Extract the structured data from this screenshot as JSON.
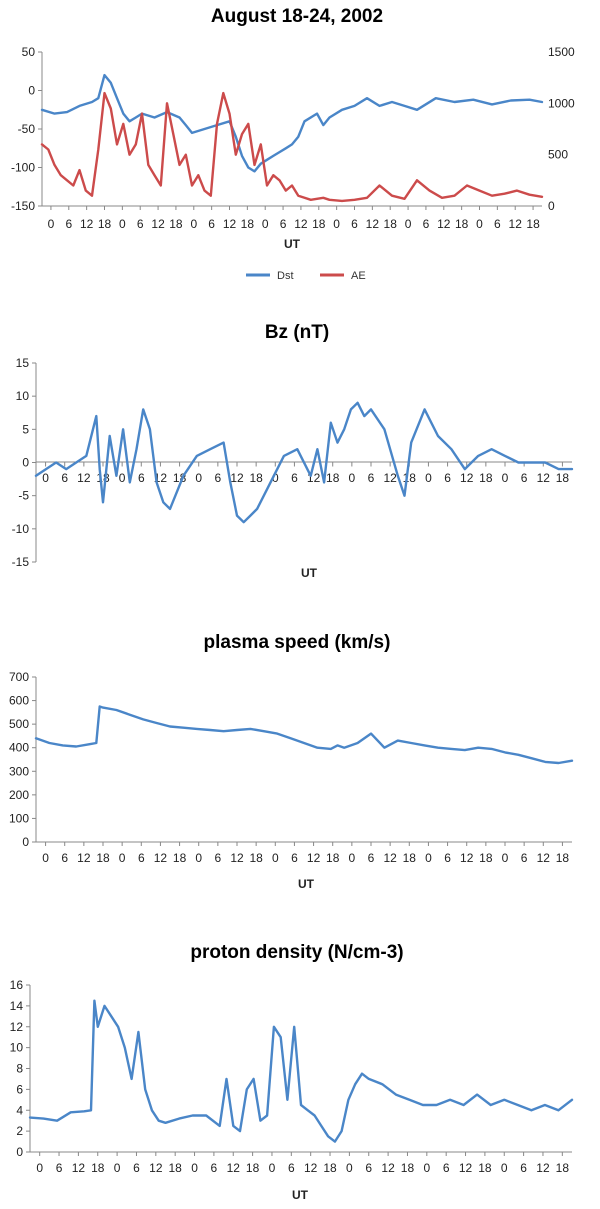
{
  "page": {
    "colors": {
      "dst": "#4a86c8",
      "ae": "#cc4b4b",
      "axis": "#888888"
    }
  },
  "chart_data": [
    {
      "id": "dst-ae",
      "type": "line",
      "title": "August 18-24, 2002",
      "xlabel": "UT",
      "ylabel": "",
      "xlim": [
        0,
        160
      ],
      "ylim": [
        -150,
        50
      ],
      "y2lim": [
        0,
        1500
      ],
      "yticks": [
        50,
        0,
        -50,
        -100,
        -150
      ],
      "y2ticks": [
        1500,
        1000,
        500,
        0
      ],
      "xtick_labels": [
        "0",
        "6",
        "12",
        "18",
        "0",
        "6",
        "12",
        "18",
        "0",
        "6",
        "12",
        "18",
        "0",
        "6",
        "12",
        "18",
        "0",
        "6",
        "12",
        "18",
        "0",
        "6",
        "12",
        "18",
        "0",
        "6",
        "12",
        "18"
      ],
      "legend": {
        "position": "bottom",
        "entries": [
          "Dst",
          "AE"
        ]
      },
      "series": [
        {
          "name": "Dst",
          "axis": "left",
          "color": "#4a86c8",
          "x": [
            0,
            4,
            8,
            12,
            16,
            18,
            20,
            22,
            24,
            26,
            28,
            30,
            32,
            36,
            40,
            44,
            46,
            48,
            52,
            56,
            60,
            62,
            64,
            66,
            68,
            70,
            72,
            74,
            76,
            78,
            80,
            82,
            84,
            88,
            90,
            92,
            96,
            100,
            104,
            108,
            112,
            116,
            120,
            126,
            132,
            138,
            144,
            150,
            156,
            160
          ],
          "values": [
            -25,
            -30,
            -28,
            -20,
            -15,
            -10,
            20,
            10,
            -10,
            -30,
            -40,
            -35,
            -30,
            -35,
            -28,
            -35,
            -45,
            -55,
            -50,
            -45,
            -40,
            -60,
            -85,
            -100,
            -105,
            -95,
            -90,
            -85,
            -80,
            -75,
            -70,
            -60,
            -40,
            -30,
            -45,
            -35,
            -25,
            -20,
            -10,
            -20,
            -15,
            -20,
            -25,
            -10,
            -15,
            -12,
            -18,
            -13,
            -12,
            -15
          ]
        },
        {
          "name": "AE",
          "axis": "right",
          "color": "#cc4b4b",
          "x": [
            0,
            2,
            4,
            6,
            8,
            10,
            12,
            14,
            16,
            18,
            20,
            22,
            24,
            26,
            28,
            30,
            32,
            34,
            36,
            38,
            40,
            42,
            44,
            46,
            48,
            50,
            52,
            54,
            56,
            58,
            60,
            62,
            64,
            66,
            68,
            70,
            72,
            74,
            76,
            78,
            80,
            82,
            84,
            86,
            88,
            90,
            92,
            96,
            100,
            104,
            108,
            112,
            116,
            120,
            124,
            128,
            132,
            136,
            140,
            144,
            148,
            152,
            156,
            160
          ],
          "values": [
            600,
            550,
            400,
            300,
            250,
            200,
            350,
            150,
            100,
            550,
            1100,
            950,
            600,
            800,
            500,
            600,
            900,
            400,
            300,
            200,
            1000,
            700,
            400,
            500,
            200,
            300,
            150,
            100,
            800,
            1100,
            900,
            500,
            700,
            800,
            400,
            600,
            200,
            300,
            250,
            150,
            200,
            100,
            80,
            60,
            70,
            80,
            60,
            50,
            60,
            80,
            200,
            100,
            70,
            250,
            150,
            80,
            100,
            200,
            150,
            100,
            120,
            150,
            110,
            90
          ]
        }
      ]
    },
    {
      "id": "bz",
      "type": "line",
      "title": "Bz (nT)",
      "xlabel": "UT",
      "ylabel": "",
      "xlim": [
        0,
        160
      ],
      "ylim": [
        -15,
        15
      ],
      "yticks": [
        15,
        10,
        5,
        0,
        -5,
        -10,
        -15
      ],
      "xtick_labels": [
        "0",
        "6",
        "12",
        "18",
        "0",
        "6",
        "12",
        "18",
        "0",
        "6",
        "12",
        "18",
        "0",
        "6",
        "12",
        "18",
        "0",
        "6",
        "12",
        "18",
        "0",
        "6",
        "12",
        "18",
        "0",
        "6",
        "12",
        "18"
      ],
      "series": [
        {
          "name": "",
          "color": "#4a86c8",
          "x": [
            0,
            3,
            6,
            9,
            12,
            15,
            18,
            19,
            20,
            22,
            24,
            26,
            28,
            30,
            32,
            34,
            36,
            38,
            40,
            44,
            48,
            52,
            56,
            58,
            60,
            62,
            64,
            66,
            70,
            74,
            78,
            82,
            84,
            86,
            88,
            90,
            92,
            94,
            96,
            98,
            100,
            104,
            108,
            110,
            112,
            116,
            120,
            124,
            128,
            132,
            136,
            140,
            144,
            148,
            152,
            156,
            160
          ],
          "values": [
            -2,
            -1,
            0,
            -1,
            0,
            1,
            7,
            -1,
            -6,
            4,
            -2,
            5,
            -3,
            2,
            8,
            5,
            -3,
            -6,
            -7,
            -2,
            1,
            2,
            3,
            -3,
            -8,
            -9,
            -8,
            -7,
            -3,
            1,
            2,
            -2,
            2,
            -3,
            6,
            3,
            5,
            8,
            9,
            7,
            8,
            5,
            -2,
            -5,
            3,
            8,
            4,
            2,
            -1,
            1,
            2,
            1,
            0,
            0,
            0,
            -1,
            -1
          ]
        }
      ]
    },
    {
      "id": "speed",
      "type": "line",
      "title": "plasma speed (km/s)",
      "xlabel": "UT",
      "ylabel": "",
      "xlim": [
        0,
        160
      ],
      "ylim": [
        0,
        700
      ],
      "yticks": [
        700,
        600,
        500,
        400,
        300,
        200,
        100,
        0
      ],
      "xtick_labels": [
        "0",
        "6",
        "12",
        "18",
        "0",
        "6",
        "12",
        "18",
        "0",
        "6",
        "12",
        "18",
        "0",
        "6",
        "12",
        "18",
        "0",
        "6",
        "12",
        "18",
        "0",
        "6",
        "12",
        "18",
        "0",
        "6",
        "12",
        "18"
      ],
      "series": [
        {
          "name": "",
          "color": "#4a86c8",
          "x": [
            0,
            4,
            8,
            12,
            16,
            18,
            19,
            20,
            24,
            28,
            32,
            36,
            40,
            44,
            48,
            52,
            56,
            60,
            64,
            68,
            72,
            76,
            80,
            84,
            88,
            90,
            92,
            96,
            100,
            104,
            108,
            112,
            116,
            120,
            124,
            128,
            132,
            136,
            140,
            144,
            148,
            152,
            156,
            160
          ],
          "values": [
            440,
            420,
            410,
            405,
            415,
            420,
            575,
            570,
            560,
            540,
            520,
            505,
            490,
            485,
            480,
            475,
            470,
            475,
            480,
            470,
            460,
            440,
            420,
            400,
            395,
            410,
            400,
            420,
            460,
            400,
            430,
            420,
            410,
            400,
            395,
            390,
            400,
            395,
            380,
            370,
            355,
            340,
            335,
            345
          ]
        }
      ]
    },
    {
      "id": "density",
      "type": "line",
      "title": "proton density (N/cm-3)",
      "xlabel": "UT",
      "ylabel": "",
      "xlim": [
        0,
        160
      ],
      "ylim": [
        0,
        16
      ],
      "yticks": [
        16,
        14,
        12,
        10,
        8,
        6,
        4,
        2,
        0
      ],
      "xtick_labels": [
        "0",
        "6",
        "12",
        "18",
        "0",
        "6",
        "12",
        "18",
        "0",
        "6",
        "12",
        "18",
        "0",
        "6",
        "12",
        "18",
        "0",
        "6",
        "12",
        "18",
        "0",
        "6",
        "12",
        "18",
        "0",
        "6",
        "12",
        "18"
      ],
      "series": [
        {
          "name": "",
          "color": "#4a86c8",
          "x": [
            0,
            4,
            8,
            12,
            16,
            18,
            19,
            20,
            22,
            24,
            26,
            28,
            30,
            32,
            34,
            36,
            38,
            40,
            44,
            48,
            52,
            56,
            58,
            60,
            62,
            64,
            66,
            68,
            70,
            72,
            74,
            76,
            78,
            80,
            82,
            84,
            86,
            88,
            90,
            92,
            94,
            96,
            98,
            100,
            104,
            108,
            112,
            116,
            120,
            124,
            128,
            132,
            136,
            140,
            144,
            148,
            152,
            156,
            160
          ],
          "values": [
            3.3,
            3.2,
            3.0,
            3.8,
            3.9,
            4.0,
            14.5,
            12.0,
            14.0,
            13.0,
            12.0,
            10.0,
            7.0,
            11.5,
            6.0,
            4.0,
            3.0,
            2.8,
            3.2,
            3.5,
            3.5,
            2.5,
            7.0,
            2.5,
            2.0,
            6.0,
            7.0,
            3.0,
            3.5,
            12.0,
            11.0,
            5.0,
            12.0,
            4.5,
            4.0,
            3.5,
            2.5,
            1.5,
            1.0,
            2.0,
            5.0,
            6.5,
            7.5,
            7.0,
            6.5,
            5.5,
            5.0,
            4.5,
            4.5,
            5.0,
            4.5,
            5.5,
            4.5,
            5.0,
            4.5,
            4.0,
            4.5,
            4.0,
            5.0
          ]
        }
      ]
    }
  ]
}
